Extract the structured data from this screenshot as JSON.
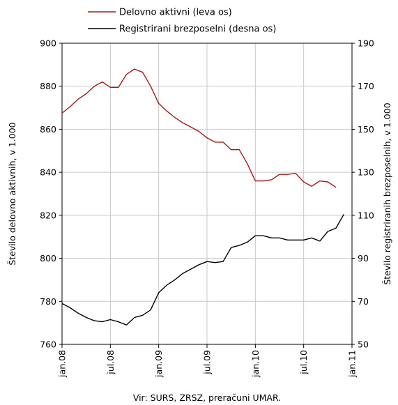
{
  "chart_data": {
    "type": "line",
    "source_note": "Vir: SURS, ZRSZ, preračuni UMAR.",
    "ylabel_left": "Število delovno aktivnih, v 1.000",
    "ylabel_right": "Število registriranih brezposelnih, v 1.000",
    "ylim_left": [
      760,
      900
    ],
    "ylim_right": [
      50,
      190
    ],
    "yticks_left": [
      760,
      780,
      800,
      820,
      840,
      860,
      880,
      900
    ],
    "yticks_right": [
      50,
      70,
      90,
      110,
      130,
      150,
      170,
      190
    ],
    "x_domain": [
      0,
      36
    ],
    "x_ticks": [
      {
        "label": "jan.08",
        "month": 0
      },
      {
        "label": "jul.08",
        "month": 6
      },
      {
        "label": "jan.09",
        "month": 12
      },
      {
        "label": "jul.09",
        "month": 18
      },
      {
        "label": "jan.10",
        "month": 24
      },
      {
        "label": "jul.10",
        "month": 30
      },
      {
        "label": "jan.11",
        "month": 36
      }
    ],
    "grid": true,
    "legend_position": "top",
    "series": [
      {
        "name": "Delovno aktivni (leva os)",
        "axis": "left",
        "color": "#a3181c",
        "x": [
          0,
          1,
          2,
          3,
          4,
          5,
          6,
          7,
          8,
          9,
          10,
          11,
          12,
          13,
          14,
          15,
          16,
          17,
          18,
          19,
          20,
          21,
          22,
          23,
          24,
          25,
          26,
          27,
          28,
          29,
          30,
          31,
          32,
          33,
          34
        ],
        "values": [
          867.5,
          870.5,
          874.0,
          876.5,
          880.0,
          882.0,
          879.5,
          879.5,
          885.5,
          888.0,
          886.5,
          880.0,
          872.0,
          868.5,
          865.5,
          863.0,
          861.0,
          859.0,
          856.0,
          854.0,
          854.0,
          850.5,
          850.5,
          844.0,
          836.0,
          836.0,
          836.5,
          839.0,
          839.0,
          839.5,
          835.5,
          833.5,
          836.0,
          835.5,
          833.0
        ]
      },
      {
        "name": "Registrirani brezposelni (desna os)",
        "axis": "right",
        "color": "#000000",
        "x": [
          0,
          1,
          2,
          3,
          4,
          5,
          6,
          7,
          8,
          9,
          10,
          11,
          12,
          13,
          14,
          15,
          16,
          17,
          18,
          19,
          20,
          21,
          22,
          23,
          24,
          25,
          26,
          27,
          28,
          29,
          30,
          31,
          32,
          33,
          34,
          35
        ],
        "values": [
          69.0,
          67.0,
          64.5,
          62.5,
          61.0,
          60.5,
          61.5,
          60.5,
          59.0,
          62.5,
          63.5,
          66.0,
          74.0,
          77.5,
          80.0,
          83.0,
          85.0,
          87.0,
          88.5,
          88.0,
          88.5,
          95.0,
          96.0,
          97.5,
          100.5,
          100.5,
          99.5,
          99.5,
          98.5,
          98.5,
          98.5,
          99.5,
          98.0,
          102.5,
          104.0,
          110.5
        ]
      }
    ]
  }
}
